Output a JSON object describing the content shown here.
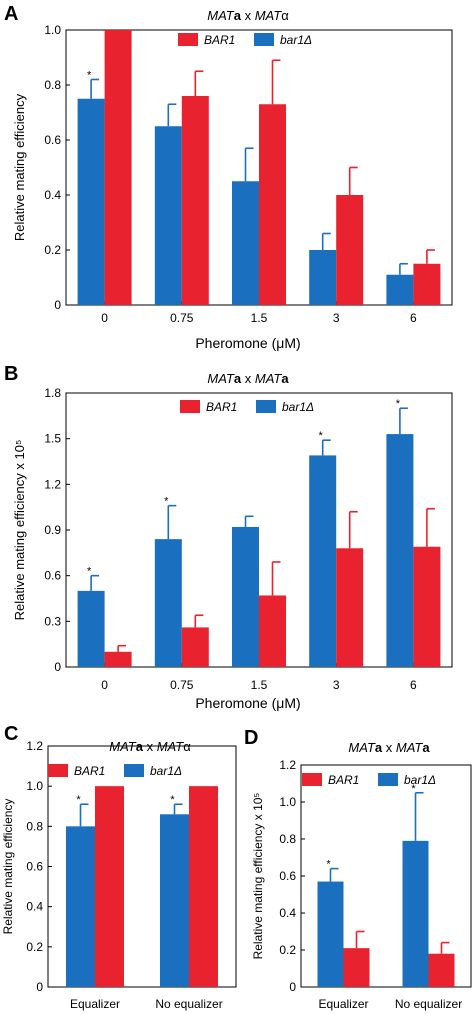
{
  "colors": {
    "BAR1": "#e8222e",
    "bar1d": "#1a6fbe"
  },
  "chart_data": [
    {
      "panel": "A",
      "type": "bar",
      "title": "MATa x MATα",
      "title_parts": [
        {
          "t": "MAT",
          "i": true,
          "b": false
        },
        {
          "t": "a",
          "i": false,
          "b": true
        },
        {
          "t": " x ",
          "i": false,
          "b": false
        },
        {
          "t": "MAT",
          "i": true,
          "b": false
        },
        {
          "t": "α",
          "i": false,
          "b": false
        }
      ],
      "xlabel": "Pheromone (μM)",
      "ylabel": "Relative mating efficiency",
      "categories": [
        "0",
        "0.75",
        "1.5",
        "3",
        "6"
      ],
      "ylim": [
        0,
        1.0
      ],
      "yticks": [
        "0",
        "0.2",
        "0.4",
        "0.6",
        "0.8",
        "1.0"
      ],
      "ytick_values": [
        0,
        0.2,
        0.4,
        0.6,
        0.8,
        1.0
      ],
      "legend": [
        "BAR1",
        "bar1Δ"
      ],
      "series": [
        {
          "name": "bar1Δ",
          "color": "bar1d",
          "values": [
            0.75,
            0.65,
            0.45,
            0.2,
            0.11
          ],
          "errors": [
            0.07,
            0.08,
            0.12,
            0.06,
            0.04
          ],
          "stars": [
            true,
            false,
            false,
            false,
            false
          ]
        },
        {
          "name": "BAR1",
          "color": "BAR1",
          "values": [
            1.0,
            0.76,
            0.73,
            0.4,
            0.15
          ],
          "errors": [
            0,
            0.09,
            0.16,
            0.1,
            0.05
          ],
          "stars": [
            false,
            false,
            false,
            false,
            false
          ]
        }
      ]
    },
    {
      "panel": "B",
      "type": "bar",
      "title": "MATa x MATa",
      "title_parts": [
        {
          "t": "MAT",
          "i": true,
          "b": false
        },
        {
          "t": "a",
          "i": false,
          "b": true
        },
        {
          "t": " x ",
          "i": false,
          "b": false
        },
        {
          "t": "MAT",
          "i": true,
          "b": false
        },
        {
          "t": "a",
          "i": false,
          "b": true
        }
      ],
      "xlabel": "Pheromone (μM)",
      "ylabel": "Relative mating efficiency x 10⁵",
      "categories": [
        "0",
        "0.75",
        "1.5",
        "3",
        "6"
      ],
      "ylim": [
        0,
        1.8
      ],
      "yticks": [
        "0",
        "0.3",
        "0.6",
        "0.9",
        "1.2",
        "1.5",
        "1.8"
      ],
      "ytick_values": [
        0,
        0.3,
        0.6,
        0.9,
        1.2,
        1.5,
        1.8
      ],
      "legend": [
        "BAR1",
        "bar1Δ"
      ],
      "series": [
        {
          "name": "bar1Δ",
          "color": "bar1d",
          "values": [
            0.5,
            0.84,
            0.92,
            1.39,
            1.53
          ],
          "errors": [
            0.1,
            0.22,
            0.07,
            0.1,
            0.17
          ],
          "stars": [
            true,
            true,
            false,
            true,
            true
          ]
        },
        {
          "name": "BAR1",
          "color": "BAR1",
          "values": [
            0.1,
            0.26,
            0.47,
            0.78,
            0.79
          ],
          "errors": [
            0.04,
            0.08,
            0.22,
            0.24,
            0.25
          ],
          "stars": [
            false,
            false,
            false,
            false,
            false
          ]
        }
      ]
    },
    {
      "panel": "C",
      "type": "bar",
      "title": "MATa x MATα",
      "title_parts": [
        {
          "t": "MAT",
          "i": true,
          "b": false
        },
        {
          "t": "a",
          "i": false,
          "b": true
        },
        {
          "t": " x ",
          "i": false,
          "b": false
        },
        {
          "t": "MAT",
          "i": true,
          "b": false
        },
        {
          "t": "α",
          "i": false,
          "b": false
        }
      ],
      "xlabel": "",
      "ylabel": "Relative mating efficiency",
      "categories": [
        "Equalizer",
        "No equalizer"
      ],
      "ylim": [
        0,
        1.2
      ],
      "yticks": [
        "0",
        "0.2",
        "0.4",
        "0.6",
        "0.8",
        "1.0",
        "1.2"
      ],
      "ytick_values": [
        0,
        0.2,
        0.4,
        0.6,
        0.8,
        1.0,
        1.2
      ],
      "legend": [
        "BAR1",
        "bar1Δ"
      ],
      "series": [
        {
          "name": "bar1Δ",
          "color": "bar1d",
          "values": [
            0.8,
            0.86
          ],
          "errors": [
            0.11,
            0.05
          ],
          "stars": [
            true,
            true
          ]
        },
        {
          "name": "BAR1",
          "color": "BAR1",
          "values": [
            1.0,
            1.0
          ],
          "errors": [
            0,
            0
          ],
          "stars": [
            false,
            false
          ]
        }
      ]
    },
    {
      "panel": "D",
      "type": "bar",
      "title": "MATa x MATa",
      "title_parts": [
        {
          "t": "MAT",
          "i": true,
          "b": false
        },
        {
          "t": "a",
          "i": false,
          "b": true
        },
        {
          "t": " x ",
          "i": false,
          "b": false
        },
        {
          "t": "MAT",
          "i": true,
          "b": false
        },
        {
          "t": "a",
          "i": false,
          "b": true
        }
      ],
      "xlabel": "",
      "ylabel": "Relative mating efficiency x 10⁵",
      "categories": [
        "Equalizer",
        "No equalizer"
      ],
      "ylim": [
        0,
        1.2
      ],
      "yticks": [
        "0",
        "0.2",
        "0.4",
        "0.6",
        "0.8",
        "1.0",
        "1.2"
      ],
      "ytick_values": [
        0,
        0.2,
        0.4,
        0.6,
        0.8,
        1.0,
        1.2
      ],
      "legend": [
        "BAR1",
        "bar1Δ"
      ],
      "series": [
        {
          "name": "bar1Δ",
          "color": "bar1d",
          "values": [
            0.57,
            0.79
          ],
          "errors": [
            0.07,
            0.26
          ],
          "stars": [
            true,
            true
          ]
        },
        {
          "name": "BAR1",
          "color": "BAR1",
          "values": [
            0.21,
            0.18
          ],
          "errors": [
            0.09,
            0.06
          ],
          "stars": [
            false,
            false
          ]
        }
      ]
    }
  ]
}
